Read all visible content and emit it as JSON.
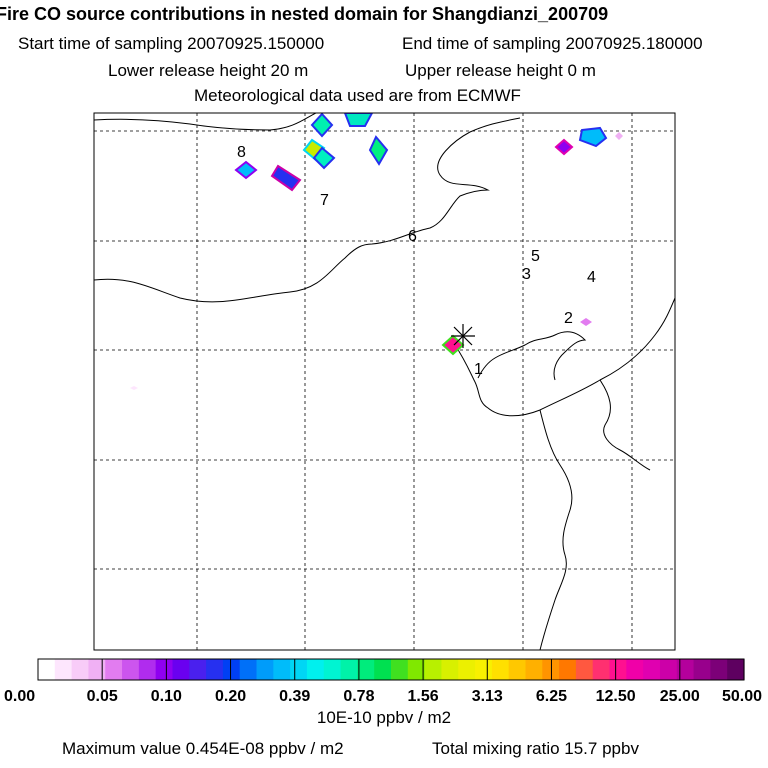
{
  "header": {
    "title": "Fire CO source contributions in nested domain for Shangdianzi_200709",
    "start_label": "Start time of sampling 20070925.150000",
    "end_label": "End time of sampling 20070925.180000",
    "lower_release": "Lower release height   20 m",
    "upper_release": "Upper release height    0 m",
    "met_data": "Meteorological data used are from ECMWF"
  },
  "chart_data": {
    "type": "heatmap",
    "title": "Fire CO source contributions in nested domain for Shangdianzi_200709",
    "colorbar": {
      "ticks": [
        "0.00",
        "0.05",
        "0.10",
        "0.20",
        "0.39",
        "0.78",
        "1.56",
        "3.13",
        "6.25",
        "12.50",
        "25.00",
        "50.00"
      ],
      "unit": "10E-10 ppbv / m2",
      "colors": [
        "#ffffff",
        "#fde6fd",
        "#f8ccf8",
        "#f0b0f4",
        "#e27cf0",
        "#cc55ee",
        "#b02cee",
        "#8f00f0",
        "#6a00f0",
        "#4a20ee",
        "#2630f0",
        "#0040f4",
        "#0070f8",
        "#009cfa",
        "#00bcfa",
        "#00d6f4",
        "#00f0ee",
        "#00f4d2",
        "#00f2a8",
        "#00ec7c",
        "#00e050",
        "#40e020",
        "#80e800",
        "#b8f000",
        "#d8f000",
        "#ecf000",
        "#f8f000",
        "#ffe000",
        "#ffc800",
        "#ffb000",
        "#ff9400",
        "#ff7800",
        "#ff5840",
        "#ff3070",
        "#ff1090",
        "#f000a8",
        "#e000b0",
        "#cc00a8",
        "#b4009c",
        "#98008c",
        "#7c0078",
        "#5e0060"
      ]
    },
    "grid_labels": [
      "1",
      "2",
      "3",
      "4",
      "5",
      "6",
      "7",
      "8"
    ],
    "source_marker": "station",
    "max_value_text": "Maximum value  0.454E-08 ppbv / m2",
    "total_mixing_text": "Total mixing ratio       15.7 ppbv"
  }
}
